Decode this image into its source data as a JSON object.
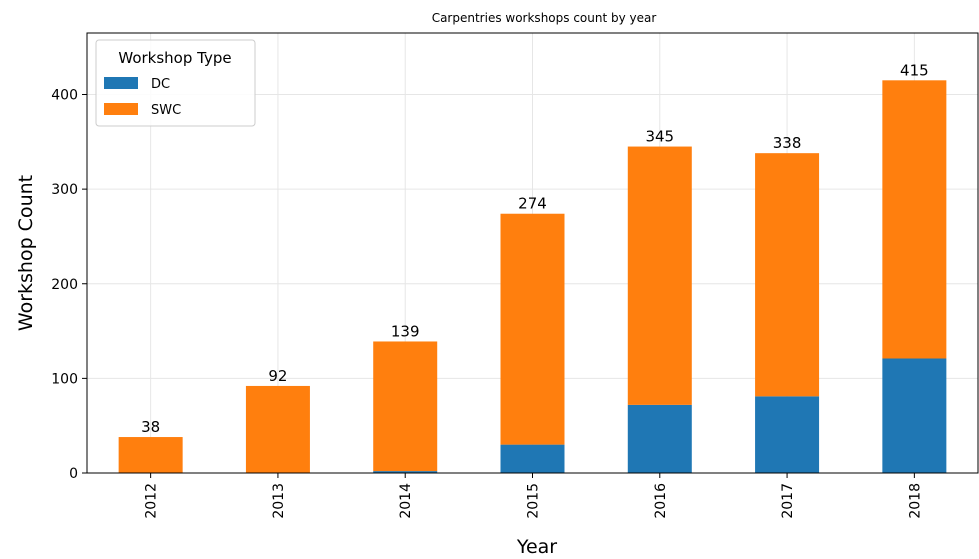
{
  "chart_data": {
    "type": "bar",
    "stacked": true,
    "title": "Carpentries workshops count by year",
    "xlabel": "Year",
    "ylabel": "Workshop Count",
    "categories": [
      "2012",
      "2013",
      "2014",
      "2015",
      "2016",
      "2017",
      "2018"
    ],
    "series": [
      {
        "name": "DC",
        "color": "#1f77b4",
        "values": [
          0,
          0,
          2,
          30,
          72,
          81,
          121
        ]
      },
      {
        "name": "SWC",
        "color": "#ff7f0e",
        "values": [
          38,
          92,
          137,
          244,
          273,
          257,
          294
        ]
      }
    ],
    "totals": [
      "38",
      "92",
      "139",
      "274",
      "345",
      "338",
      "415"
    ],
    "ylim": [
      0,
      465
    ],
    "yticks": [
      "0",
      "100",
      "200",
      "300",
      "400"
    ],
    "grid": true,
    "legend": {
      "title": "Workshop Type",
      "placement": "top-left"
    }
  }
}
